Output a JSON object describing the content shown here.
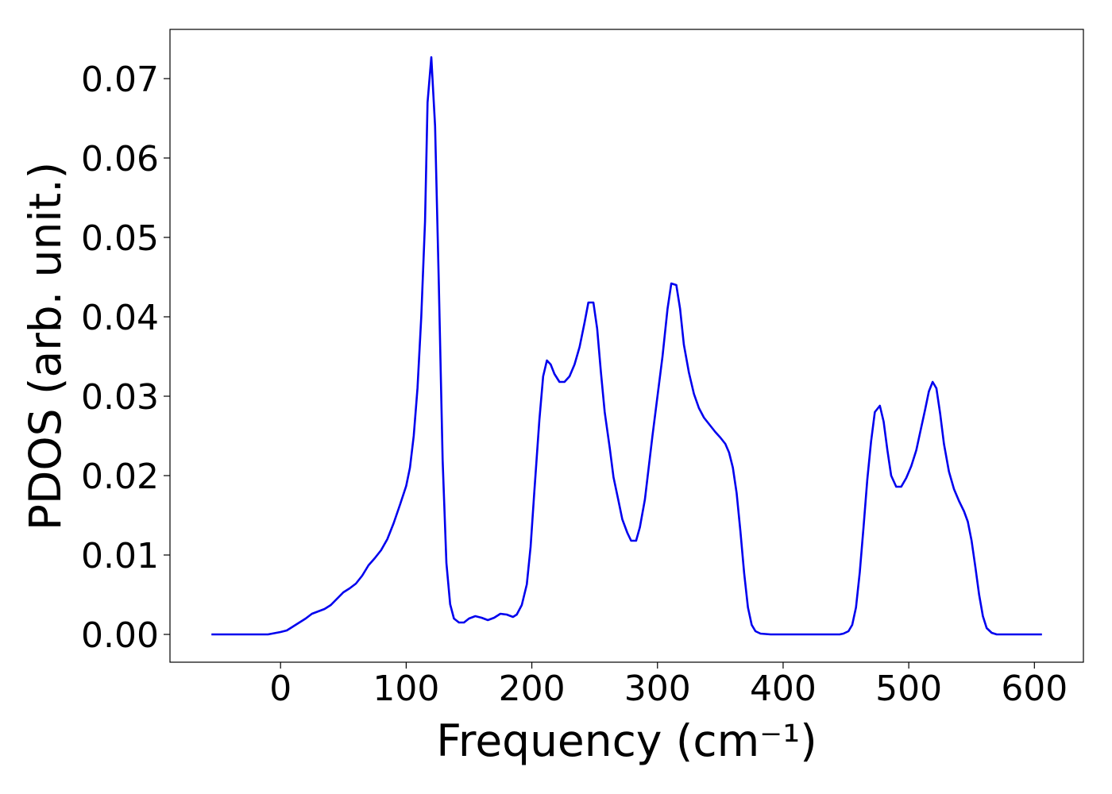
{
  "chart_data": {
    "type": "line",
    "xlabel": "Frequency (cm⁻¹)",
    "ylabel": "PDOS (arb. unit.)",
    "xlim": [
      -88,
      639
    ],
    "ylim": [
      -0.0035,
      0.0762
    ],
    "xticks": [
      0,
      100,
      200,
      300,
      400,
      500,
      600
    ],
    "yticks": [
      {
        "value": 0,
        "label": "0.00"
      },
      0.01,
      0.02,
      0.03,
      0.04,
      0.05,
      0.06,
      0.07
    ],
    "grid": false,
    "series": [
      {
        "color": "#0000ee",
        "x": [
          -55,
          -10,
          0,
          5,
          10,
          15,
          20,
          25,
          30,
          35,
          40,
          45,
          50,
          55,
          60,
          65,
          70,
          75,
          80,
          85,
          90,
          95,
          100,
          103,
          106,
          109,
          112,
          115,
          117,
          120,
          123,
          126,
          129,
          132,
          135,
          138,
          142,
          146,
          150,
          155,
          160,
          165,
          170,
          175,
          180,
          185,
          188,
          192,
          196,
          199,
          202,
          206,
          209,
          212,
          215,
          218,
          222,
          226,
          230,
          234,
          238,
          242,
          245,
          249,
          252,
          255,
          258,
          262,
          265,
          269,
          272,
          276,
          279,
          283,
          286,
          290,
          293,
          296,
          300,
          304,
          308,
          311,
          315,
          318,
          321,
          325,
          329,
          333,
          337,
          342,
          346,
          350,
          354,
          357,
          360,
          363,
          366,
          369,
          372,
          375,
          378,
          382,
          390,
          445,
          448,
          452,
          455,
          458,
          461,
          464,
          467,
          470,
          473,
          477,
          480,
          483,
          486,
          490,
          494,
          498,
          502,
          506,
          509,
          513,
          516,
          519,
          522,
          525,
          528,
          532,
          536,
          540,
          544,
          547,
          550,
          553,
          556,
          559,
          562,
          566,
          570,
          606
        ],
        "values": [
          0,
          0,
          0.0003,
          0.0005,
          0.001,
          0.0015,
          0.002,
          0.0026,
          0.0029,
          0.0032,
          0.0037,
          0.0045,
          0.0053,
          0.0058,
          0.0064,
          0.0074,
          0.0087,
          0.0096,
          0.0106,
          0.012,
          0.014,
          0.0163,
          0.0187,
          0.021,
          0.025,
          0.031,
          0.04,
          0.052,
          0.067,
          0.0727,
          0.064,
          0.044,
          0.022,
          0.009,
          0.0038,
          0.002,
          0.0015,
          0.0015,
          0.002,
          0.0023,
          0.0021,
          0.0018,
          0.0021,
          0.0026,
          0.0025,
          0.0022,
          0.0025,
          0.0037,
          0.0063,
          0.011,
          0.018,
          0.027,
          0.0325,
          0.0345,
          0.034,
          0.0328,
          0.0318,
          0.0318,
          0.0325,
          0.034,
          0.0362,
          0.0393,
          0.0418,
          0.0418,
          0.0385,
          0.033,
          0.028,
          0.0235,
          0.0198,
          0.0168,
          0.0145,
          0.0128,
          0.0118,
          0.0118,
          0.0135,
          0.017,
          0.021,
          0.025,
          0.03,
          0.035,
          0.041,
          0.0442,
          0.044,
          0.041,
          0.0365,
          0.033,
          0.0303,
          0.0285,
          0.0273,
          0.0263,
          0.0255,
          0.0248,
          0.024,
          0.0229,
          0.021,
          0.0178,
          0.013,
          0.0077,
          0.0034,
          0.0012,
          0.0004,
          0.0001,
          0,
          0,
          0.0001,
          0.0004,
          0.0012,
          0.0034,
          0.0078,
          0.0135,
          0.0195,
          0.0243,
          0.028,
          0.0288,
          0.0268,
          0.0232,
          0.02,
          0.0186,
          0.0186,
          0.0197,
          0.0212,
          0.0232,
          0.0254,
          0.0283,
          0.0306,
          0.0318,
          0.031,
          0.0278,
          0.024,
          0.0205,
          0.0183,
          0.0168,
          0.0155,
          0.0142,
          0.0118,
          0.0085,
          0.005,
          0.0023,
          0.0008,
          0.0002,
          0,
          0
        ]
      }
    ]
  }
}
